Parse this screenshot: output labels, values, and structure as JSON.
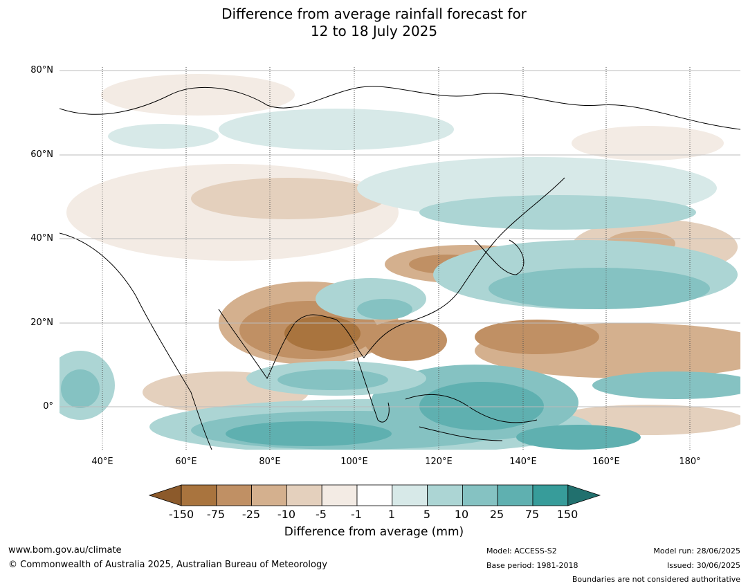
{
  "title_line1": "Difference from average rainfall forecast for",
  "title_line2": "12 to 18 July 2025",
  "lat_labels": [
    "80°N",
    "60°N",
    "40°N",
    "20°N",
    "0°"
  ],
  "lon_labels": [
    "40°E",
    "60°E",
    "80°E",
    "100°E",
    "120°E",
    "140°E",
    "160°E",
    "180°"
  ],
  "colorbar": {
    "ticks": [
      "-150",
      "-75",
      "-25",
      "-10",
      "-5",
      "-1",
      "1",
      "5",
      "10",
      "25",
      "75",
      "150"
    ],
    "colors": [
      "#8c5a2b",
      "#a9743e",
      "#c09064",
      "#d4b08e",
      "#e4d0bd",
      "#f3ebe4",
      "#ffffff",
      "#d7e9e8",
      "#acd5d4",
      "#85c2c2",
      "#5fb0b0",
      "#379c9a",
      "#21706e"
    ],
    "label": "Difference from average (mm)"
  },
  "footer": {
    "url": "www.bom.gov.au/climate",
    "copyright": "© Commonwealth of Australia 2025, Australian Bureau of Meteorology",
    "model": "Model: ACCESS-S2",
    "base_period": "Base period: 1981-2018",
    "model_run": "Model run: 28/06/2025",
    "issued": "Issued: 30/06/2025",
    "disclaimer": "Boundaries are not considered authoritative"
  }
}
